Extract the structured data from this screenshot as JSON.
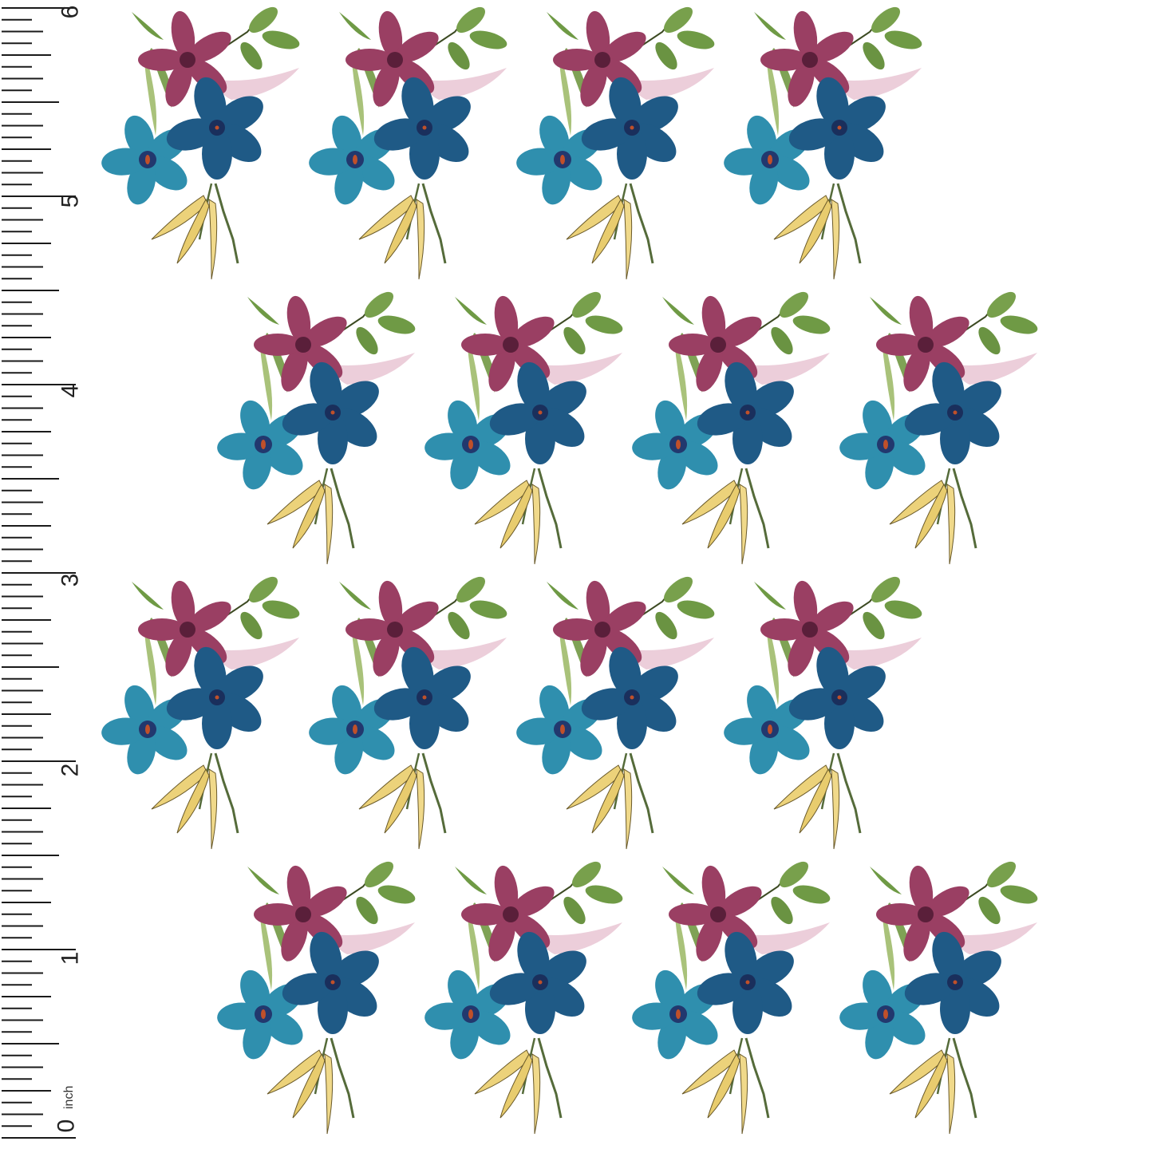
{
  "ruler": {
    "unit": "inch",
    "labels": [
      "0",
      "1",
      "2",
      "3",
      "4",
      "5",
      "6"
    ],
    "ticks_per_inch": 16,
    "tick_color": "#1a1a1a"
  },
  "pattern": {
    "motif": "floral-bouquet",
    "rows": 4,
    "motifs_per_row": 4,
    "layout": "half-drop offset",
    "colors": {
      "background": "#ffffff",
      "pink_flower": "#9a3f63",
      "blue_flower": "#1f5a86",
      "teal_flower": "#2f8fae",
      "green_leaf": "#6f9a45",
      "yellow_leaf": "#ecd27a",
      "pink_wash": "#e9c6d3"
    }
  }
}
